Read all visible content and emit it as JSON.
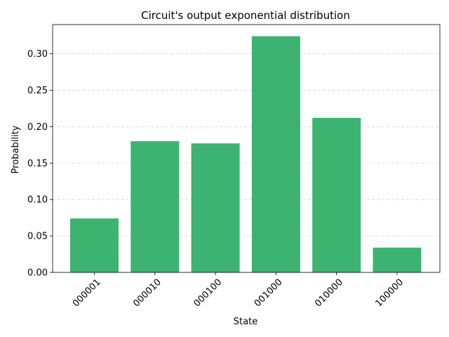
{
  "chart_data": {
    "type": "bar",
    "title": "Circuit's output exponential distribution",
    "xlabel": "State",
    "ylabel": "Probability",
    "categories": [
      "000001",
      "000010",
      "000100",
      "001000",
      "010000",
      "100000"
    ],
    "values": [
      0.074,
      0.18,
      0.177,
      0.324,
      0.212,
      0.034
    ],
    "ylim": [
      0,
      0.34
    ],
    "yticks": [
      0.0,
      0.05,
      0.1,
      0.15,
      0.2,
      0.25,
      0.3
    ],
    "ytick_labels": [
      "0.00",
      "0.05",
      "0.10",
      "0.15",
      "0.20",
      "0.25",
      "0.30"
    ],
    "grid": "y-dashed",
    "bar_color": "#3cb371",
    "grid_color": "#d3d3d3"
  }
}
